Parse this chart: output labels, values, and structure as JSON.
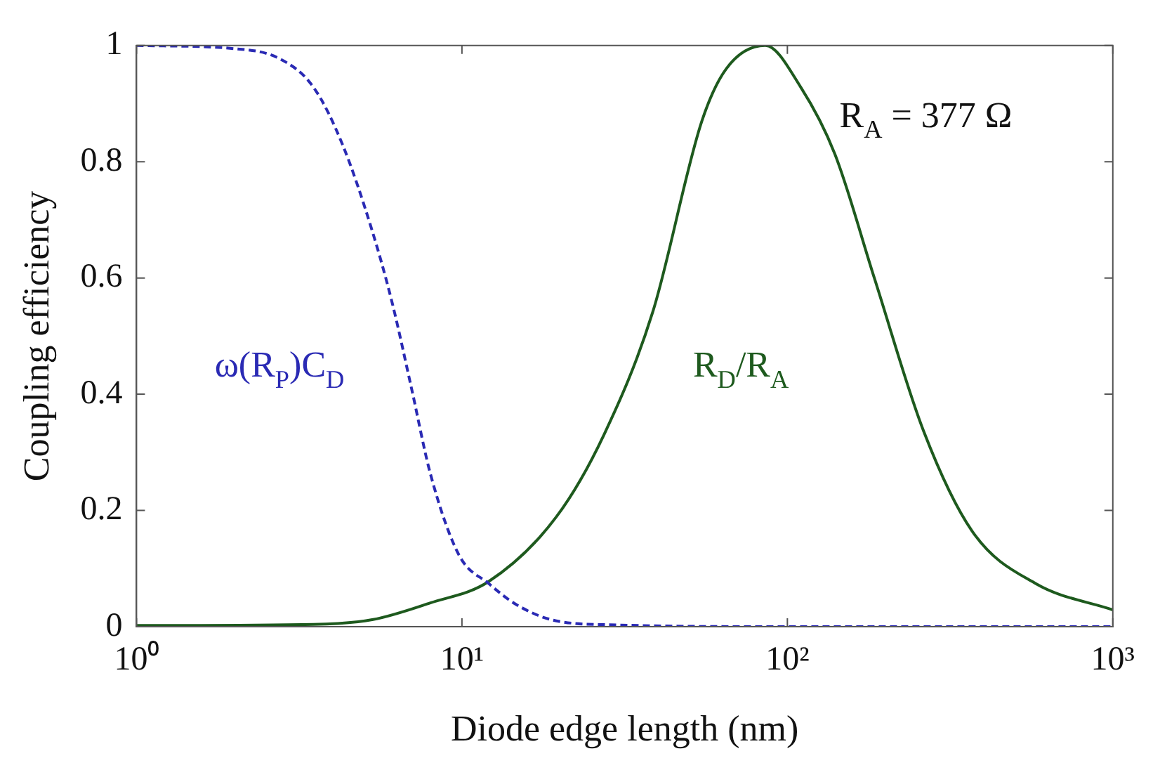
{
  "chart_data": {
    "type": "line",
    "xlabel": "Diode edge length (nm)",
    "ylabel": "Coupling efficiency",
    "log": "x",
    "xlim": [
      1,
      1000
    ],
    "ylim": [
      0,
      1
    ],
    "xticks": [
      {
        "value": 1,
        "label": "10⁰"
      },
      {
        "value": 10,
        "label": "10¹"
      },
      {
        "value": 100,
        "label": "10²"
      },
      {
        "value": 1000,
        "label": "10³"
      }
    ],
    "yticks": [
      0,
      0.2,
      0.4,
      0.6,
      0.8,
      1
    ],
    "grid": false,
    "legend": false,
    "marker": "none",
    "annotations": [
      "R$_{A}$ = 377 Ω"
    ],
    "series": [
      {
        "name": "ω(R$_{P}$)C$_{D}$",
        "color": "#2a2ab4",
        "line_style": "dashed",
        "x": [
          1,
          1.96,
          2.76,
          3.5,
          4.3,
          5.3,
          6.1,
          7,
          8,
          9.8,
          12.1,
          14.8,
          19.5,
          30,
          100,
          1000
        ],
        "values": [
          1,
          0.995,
          0.977,
          0.928,
          0.829,
          0.681,
          0.558,
          0.41,
          0.263,
          0.123,
          0.074,
          0.037,
          0.01,
          0.003,
          0,
          0
        ]
      },
      {
        "name": "R$_{D}$/R$_{A}$",
        "color": "#1e5a1e",
        "line_style": "solid",
        "x": [
          1,
          3.5,
          5.3,
          8,
          12.1,
          19.5,
          27.3,
          38.6,
          54.6,
          64.9,
          85.5,
          110,
          140,
          185,
          262,
          370,
          580,
          1000
        ],
        "values": [
          0.002,
          0.004,
          0.012,
          0.041,
          0.078,
          0.189,
          0.33,
          0.542,
          0.87,
          0.96,
          1,
          0.928,
          0.813,
          0.6,
          0.337,
          0.164,
          0.074,
          0.029
        ]
      }
    ]
  }
}
